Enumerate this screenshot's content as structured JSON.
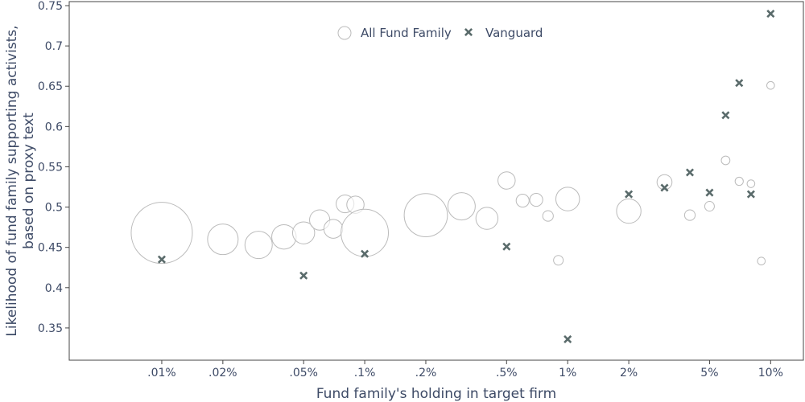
{
  "chart_data": {
    "type": "scatter",
    "title": "",
    "xlabel": "Fund family's holding in target firm",
    "ylabel_lines": [
      "Likelihood of fund family supporting activists,",
      "based on proxy text"
    ],
    "x_scale": "log",
    "x_unit": "percent",
    "xlim": [
      0.0035,
      14.5
    ],
    "ylim": [
      0.31,
      0.755
    ],
    "x_ticks": [
      {
        "value": 0.01,
        "label": ".01%"
      },
      {
        "value": 0.02,
        "label": ".02%"
      },
      {
        "value": 0.05,
        "label": ".05%"
      },
      {
        "value": 0.1,
        "label": ".1%"
      },
      {
        "value": 0.2,
        "label": ".2%"
      },
      {
        "value": 0.5,
        "label": ".5%"
      },
      {
        "value": 1,
        "label": "1%"
      },
      {
        "value": 2,
        "label": "2%"
      },
      {
        "value": 5,
        "label": "5%"
      },
      {
        "value": 10,
        "label": "10%"
      }
    ],
    "y_ticks": [
      {
        "value": 0.35,
        "label": "0.35"
      },
      {
        "value": 0.4,
        "label": "0.4"
      },
      {
        "value": 0.45,
        "label": "0.45"
      },
      {
        "value": 0.5,
        "label": "0.5"
      },
      {
        "value": 0.55,
        "label": "0.55"
      },
      {
        "value": 0.6,
        "label": "0.6"
      },
      {
        "value": 0.65,
        "label": "0.65"
      },
      {
        "value": 0.7,
        "label": "0.7"
      },
      {
        "value": 0.75,
        "label": "0.75"
      }
    ],
    "grid": false,
    "legend_position": "top-center",
    "series": [
      {
        "name": "All Fund Family",
        "marker": "open-circle",
        "color": "#bbbbbb",
        "size_encoded": true,
        "points": [
          {
            "x": 0.01,
            "y": 0.468,
            "size": 1.0
          },
          {
            "x": 0.02,
            "y": 0.46,
            "size": 0.25
          },
          {
            "x": 0.03,
            "y": 0.453,
            "size": 0.2
          },
          {
            "x": 0.04,
            "y": 0.463,
            "size": 0.16
          },
          {
            "x": 0.05,
            "y": 0.468,
            "size": 0.13
          },
          {
            "x": 0.06,
            "y": 0.484,
            "size": 0.11
          },
          {
            "x": 0.07,
            "y": 0.473,
            "size": 0.095
          },
          {
            "x": 0.08,
            "y": 0.504,
            "size": 0.085
          },
          {
            "x": 0.09,
            "y": 0.503,
            "size": 0.08
          },
          {
            "x": 0.1,
            "y": 0.468,
            "size": 0.6
          },
          {
            "x": 0.2,
            "y": 0.49,
            "size": 0.5
          },
          {
            "x": 0.3,
            "y": 0.501,
            "size": 0.2
          },
          {
            "x": 0.4,
            "y": 0.486,
            "size": 0.13
          },
          {
            "x": 0.5,
            "y": 0.533,
            "size": 0.08
          },
          {
            "x": 0.6,
            "y": 0.508,
            "size": 0.045
          },
          {
            "x": 0.7,
            "y": 0.509,
            "size": 0.045
          },
          {
            "x": 0.8,
            "y": 0.489,
            "size": 0.03
          },
          {
            "x": 0.9,
            "y": 0.434,
            "size": 0.025
          },
          {
            "x": 1,
            "y": 0.51,
            "size": 0.15
          },
          {
            "x": 2,
            "y": 0.495,
            "size": 0.16
          },
          {
            "x": 3,
            "y": 0.531,
            "size": 0.06
          },
          {
            "x": 4,
            "y": 0.49,
            "size": 0.03
          },
          {
            "x": 5,
            "y": 0.501,
            "size": 0.025
          },
          {
            "x": 6,
            "y": 0.558,
            "size": 0.02
          },
          {
            "x": 7,
            "y": 0.532,
            "size": 0.018
          },
          {
            "x": 8,
            "y": 0.529,
            "size": 0.016
          },
          {
            "x": 9,
            "y": 0.433,
            "size": 0.016
          },
          {
            "x": 10,
            "y": 0.651,
            "size": 0.016
          }
        ]
      },
      {
        "name": "Vanguard",
        "marker": "x",
        "color": "#5a6b6b",
        "points": [
          {
            "x": 0.01,
            "y": 0.435
          },
          {
            "x": 0.05,
            "y": 0.415
          },
          {
            "x": 0.1,
            "y": 0.442
          },
          {
            "x": 0.5,
            "y": 0.451
          },
          {
            "x": 1,
            "y": 0.336
          },
          {
            "x": 2,
            "y": 0.516
          },
          {
            "x": 3,
            "y": 0.524
          },
          {
            "x": 4,
            "y": 0.543
          },
          {
            "x": 5,
            "y": 0.518
          },
          {
            "x": 6,
            "y": 0.614
          },
          {
            "x": 7,
            "y": 0.654
          },
          {
            "x": 8,
            "y": 0.516
          },
          {
            "x": 10,
            "y": 0.74
          }
        ]
      }
    ]
  }
}
